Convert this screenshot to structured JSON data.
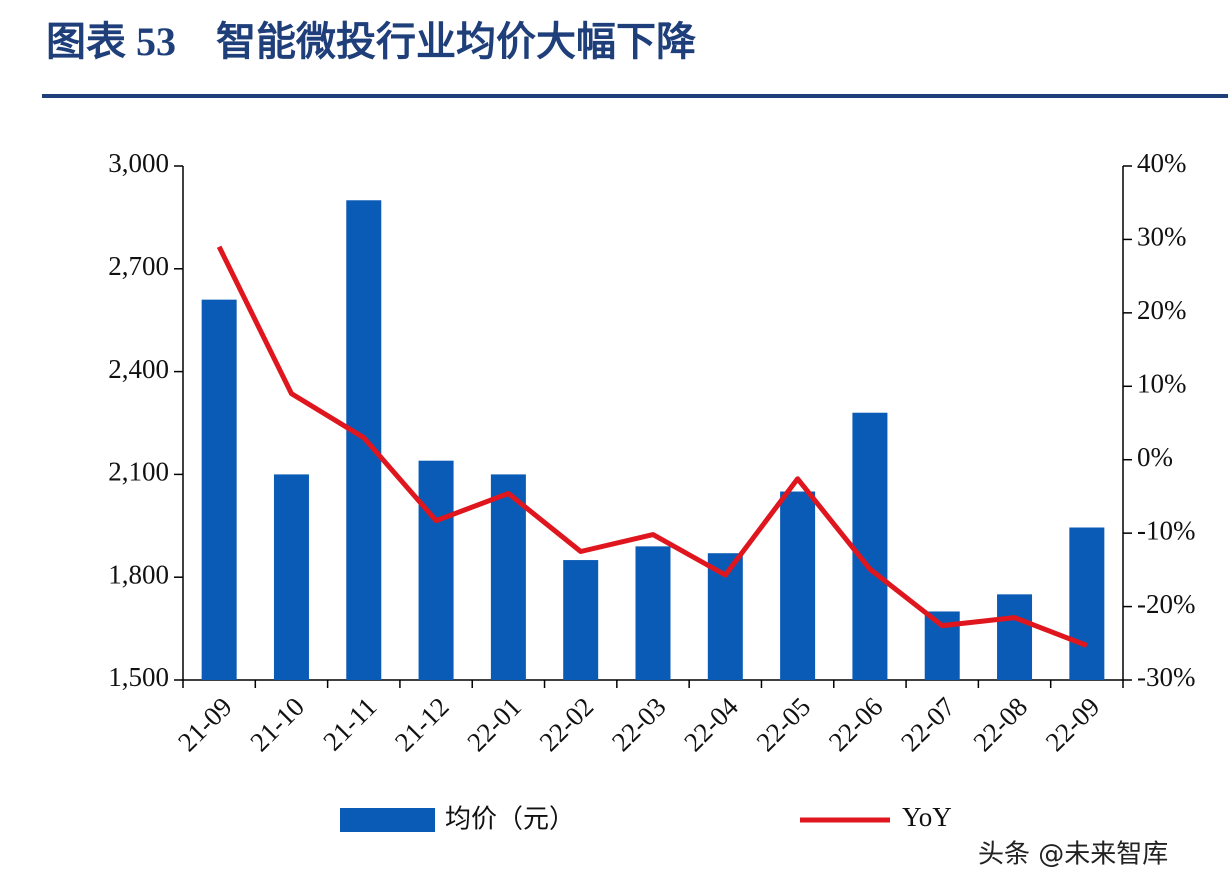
{
  "chart_data": {
    "type": "bar-line",
    "title": "图表 53　智能微投行业均价大幅下降",
    "source": "头条 @未来智库",
    "categories": [
      "21-09",
      "21-10",
      "21-11",
      "21-12",
      "22-01",
      "22-02",
      "22-03",
      "22-04",
      "22-05",
      "22-06",
      "22-07",
      "22-08",
      "22-09"
    ],
    "series": [
      {
        "name": "均价（元）",
        "type": "bar",
        "color": "#0a5bb5",
        "values": [
          2610,
          2100,
          2900,
          2140,
          2100,
          1850,
          1890,
          1870,
          2050,
          2280,
          1700,
          1750,
          1945
        ]
      },
      {
        "name": "YoY",
        "type": "line",
        "axis": "y2",
        "color": "#e0161e",
        "values": [
          29,
          9,
          3,
          -8.3,
          -4.6,
          -12.5,
          -10.2,
          -15.7,
          -2.6,
          -14.9,
          -22.6,
          -21.5,
          -25.3
        ]
      }
    ],
    "ylim": [
      1500,
      3000
    ],
    "yticks": [
      {
        "value": 1500,
        "label": "1,500"
      },
      {
        "value": 1800,
        "label": "1,800"
      },
      {
        "value": 2100,
        "label": "2,100"
      },
      {
        "value": 2400,
        "label": "2,400"
      },
      {
        "value": 2700,
        "label": "2,700"
      },
      {
        "value": 3000,
        "label": "3,000"
      }
    ],
    "y2lim": [
      -30,
      40
    ],
    "y2ticks": [
      {
        "value": -30,
        "label": "-30%"
      },
      {
        "value": -20,
        "label": "-20%"
      },
      {
        "value": -10,
        "label": "-10%"
      },
      {
        "value": 0,
        "label": "0%"
      },
      {
        "value": 10,
        "label": "10%"
      },
      {
        "value": 20,
        "label": "20%"
      },
      {
        "value": 30,
        "label": "30%"
      },
      {
        "value": 40,
        "label": "40%"
      }
    ]
  }
}
